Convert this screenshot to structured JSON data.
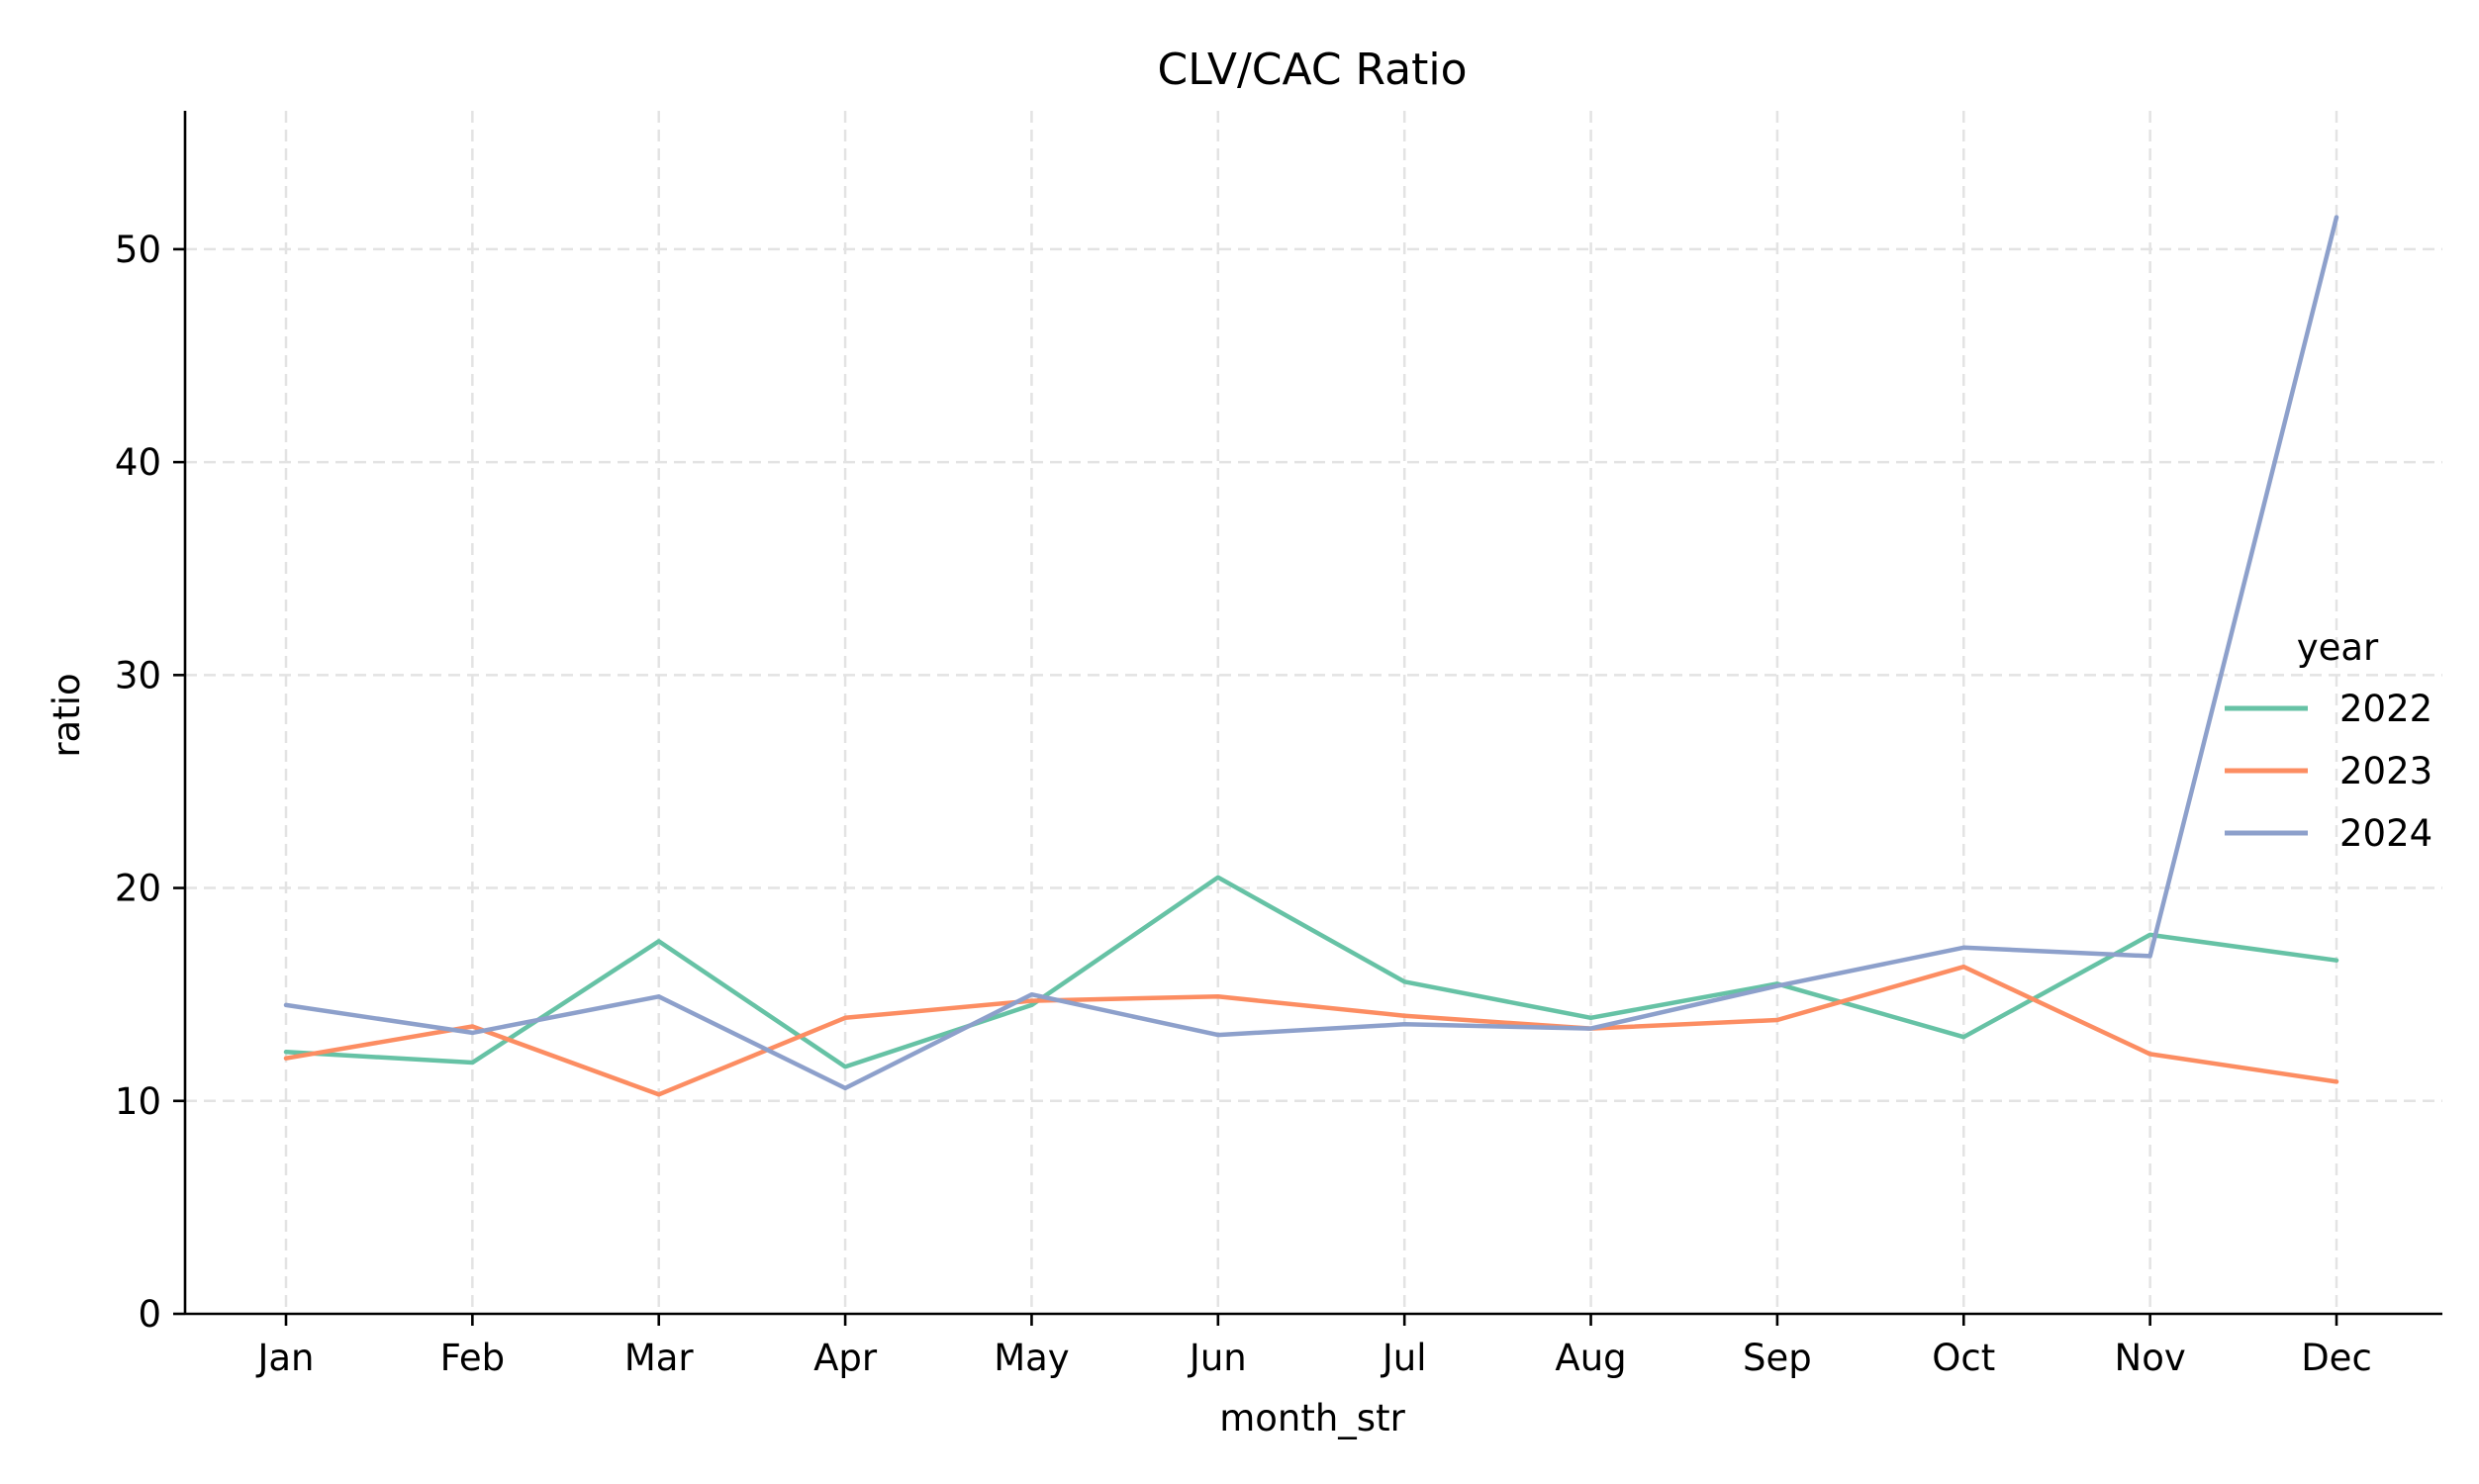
{
  "chart_data": {
    "type": "line",
    "title": "CLV/CAC Ratio",
    "xlabel": "month_str",
    "ylabel": "ratio",
    "categories": [
      "Jan",
      "Feb",
      "Mar",
      "Apr",
      "May",
      "Jun",
      "Jul",
      "Aug",
      "Sep",
      "Oct",
      "Nov",
      "Dec"
    ],
    "ylim": [
      0,
      56.5
    ],
    "yticks": [
      0,
      10,
      20,
      30,
      40,
      50
    ],
    "ytick_labels": [
      "0",
      "10",
      "20",
      "30",
      "40",
      "50"
    ],
    "grid": true,
    "legend": {
      "title": "year",
      "placement": "right"
    },
    "series": [
      {
        "name": "2022",
        "color": "#66c2a5",
        "values": [
          12.3,
          11.8,
          17.5,
          11.6,
          14.5,
          20.5,
          15.6,
          13.9,
          15.5,
          13.0,
          17.8,
          16.6
        ]
      },
      {
        "name": "2023",
        "color": "#fc8d62",
        "values": [
          12.0,
          13.5,
          10.3,
          13.9,
          14.7,
          14.9,
          14.0,
          13.4,
          13.8,
          16.3,
          12.2,
          10.9
        ]
      },
      {
        "name": "2024",
        "color": "#8da0cb",
        "values": [
          14.5,
          13.2,
          14.9,
          10.6,
          15.0,
          13.1,
          13.6,
          13.4,
          15.4,
          17.2,
          16.8,
          51.5
        ]
      }
    ]
  }
}
